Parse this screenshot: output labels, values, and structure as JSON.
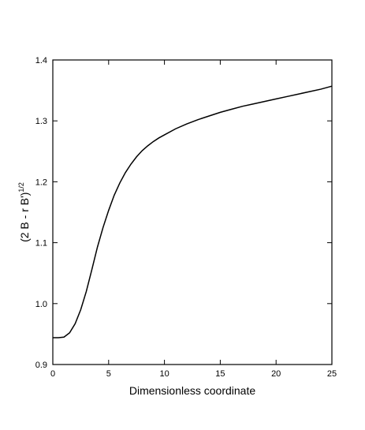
{
  "chart_data": {
    "type": "line",
    "xlabel": "Dimensionless coordinate",
    "ylabel": {
      "base": "(2 B - r B')",
      "superscript": "1/2"
    },
    "xlim": [
      0,
      25
    ],
    "ylim": [
      0.9,
      1.4
    ],
    "xticks": [
      0,
      5,
      10,
      15,
      20,
      25
    ],
    "yticks": [
      0.9,
      1.0,
      1.1,
      1.2,
      1.3,
      1.4
    ],
    "xtick_labels": [
      "0",
      "5",
      "10",
      "15",
      "20",
      "25"
    ],
    "ytick_labels": [
      "0.9",
      "1.0",
      "1.1",
      "1.2",
      "1.3",
      "1.4"
    ],
    "grid": false,
    "legend": "none",
    "series": [
      {
        "x": [
          0,
          0.5,
          1.0,
          1.5,
          2.0,
          2.5,
          3.0,
          3.5,
          4.0,
          4.5,
          5.0,
          5.5,
          6.0,
          6.5,
          7.0,
          7.5,
          8.0,
          8.5,
          9.0,
          9.5,
          10,
          11,
          12,
          13,
          14,
          15,
          16,
          17,
          18,
          19,
          20,
          21,
          22,
          23,
          24,
          25
        ],
        "y": [
          0.944,
          0.944,
          0.945,
          0.952,
          0.967,
          0.99,
          1.02,
          1.056,
          1.093,
          1.125,
          1.153,
          1.178,
          1.198,
          1.215,
          1.229,
          1.241,
          1.251,
          1.259,
          1.266,
          1.272,
          1.277,
          1.287,
          1.295,
          1.302,
          1.308,
          1.314,
          1.319,
          1.324,
          1.328,
          1.332,
          1.336,
          1.34,
          1.344,
          1.348,
          1.352,
          1.357
        ]
      }
    ]
  }
}
